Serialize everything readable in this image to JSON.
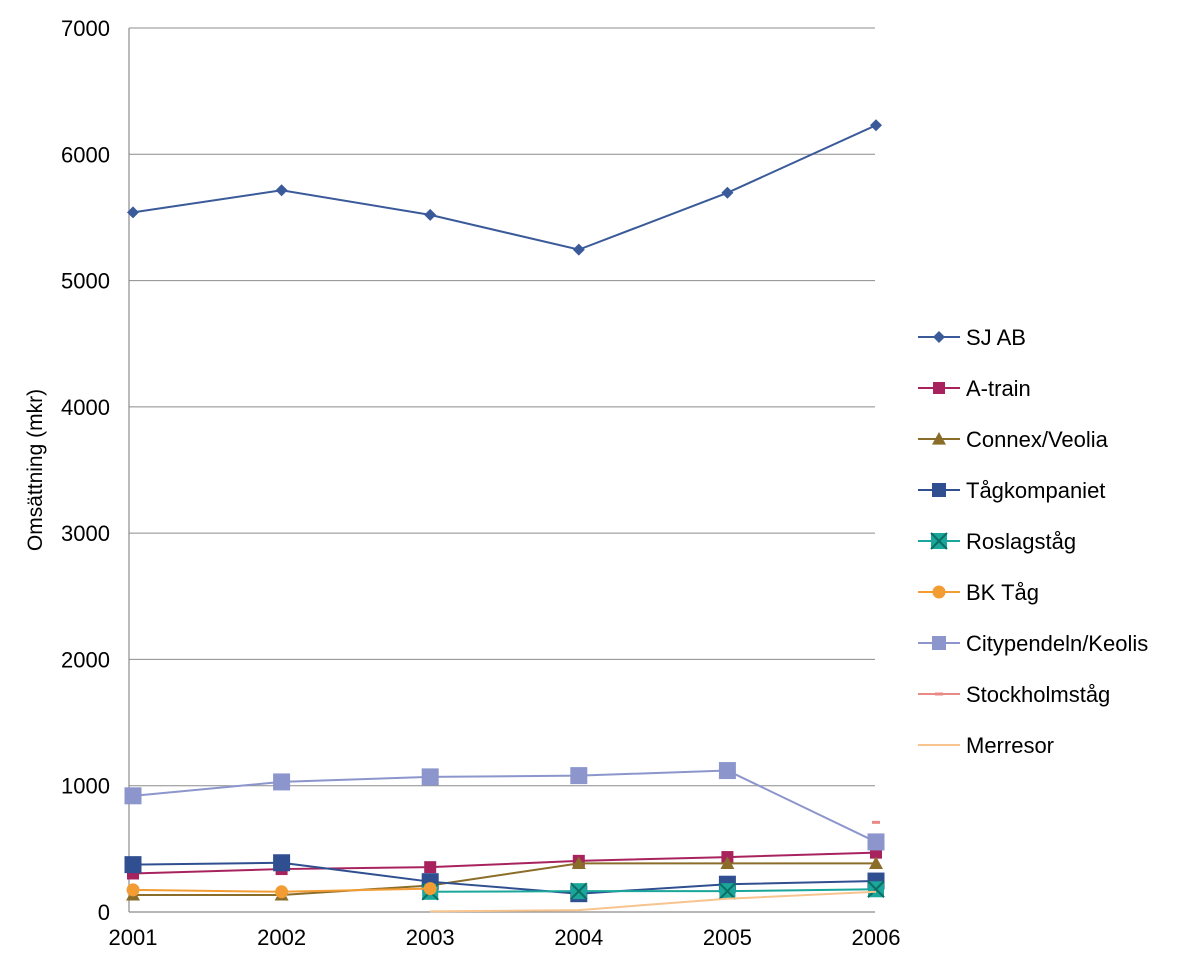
{
  "chart_data": {
    "type": "line",
    "title": "",
    "xlabel": "",
    "ylabel": "Omsättning (mkr)",
    "ylim": [
      0,
      7000
    ],
    "yticks": [
      0,
      1000,
      2000,
      3000,
      4000,
      5000,
      6000,
      7000
    ],
    "x": [
      "2001",
      "2002",
      "2003",
      "2004",
      "2005",
      "2006"
    ],
    "grid": true,
    "legend_position": "right",
    "series": [
      {
        "name": "SJ AB",
        "color": "#3A5A9A",
        "marker": "diamond",
        "values": [
          5540,
          5715,
          5520,
          5245,
          5695,
          6230
        ]
      },
      {
        "name": "A-train",
        "color": "#A8235E",
        "marker": "square",
        "values": [
          305,
          340,
          355,
          405,
          435,
          470
        ]
      },
      {
        "name": "Connex/Veolia",
        "color": "#8B6D2A",
        "marker": "triangle",
        "values": [
          135,
          135,
          210,
          385,
          385,
          385
        ]
      },
      {
        "name": "Tågkompaniet",
        "color": "#2F4F91",
        "marker": "square",
        "values": [
          375,
          390,
          240,
          145,
          220,
          245
        ]
      },
      {
        "name": "Roslagståg",
        "color": "#1AA69A",
        "marker": "xsquare",
        "values": [
          null,
          null,
          160,
          165,
          165,
          180
        ]
      },
      {
        "name": "BK Tåg",
        "color": "#F39C33",
        "marker": "circle",
        "values": [
          175,
          160,
          185,
          null,
          null,
          null
        ]
      },
      {
        "name": "Citypendeln/Keolis",
        "color": "#8C96CC",
        "marker": "square",
        "values": [
          920,
          1030,
          1070,
          1080,
          1120,
          555
        ]
      },
      {
        "name": "Stockholmståg",
        "color": "#E88A85",
        "marker": "dash",
        "values": [
          null,
          null,
          null,
          null,
          null,
          710
        ]
      },
      {
        "name": "Merresor",
        "color": "#F7C48E",
        "marker": "none",
        "values": [
          null,
          null,
          5,
          15,
          105,
          160
        ]
      }
    ]
  }
}
